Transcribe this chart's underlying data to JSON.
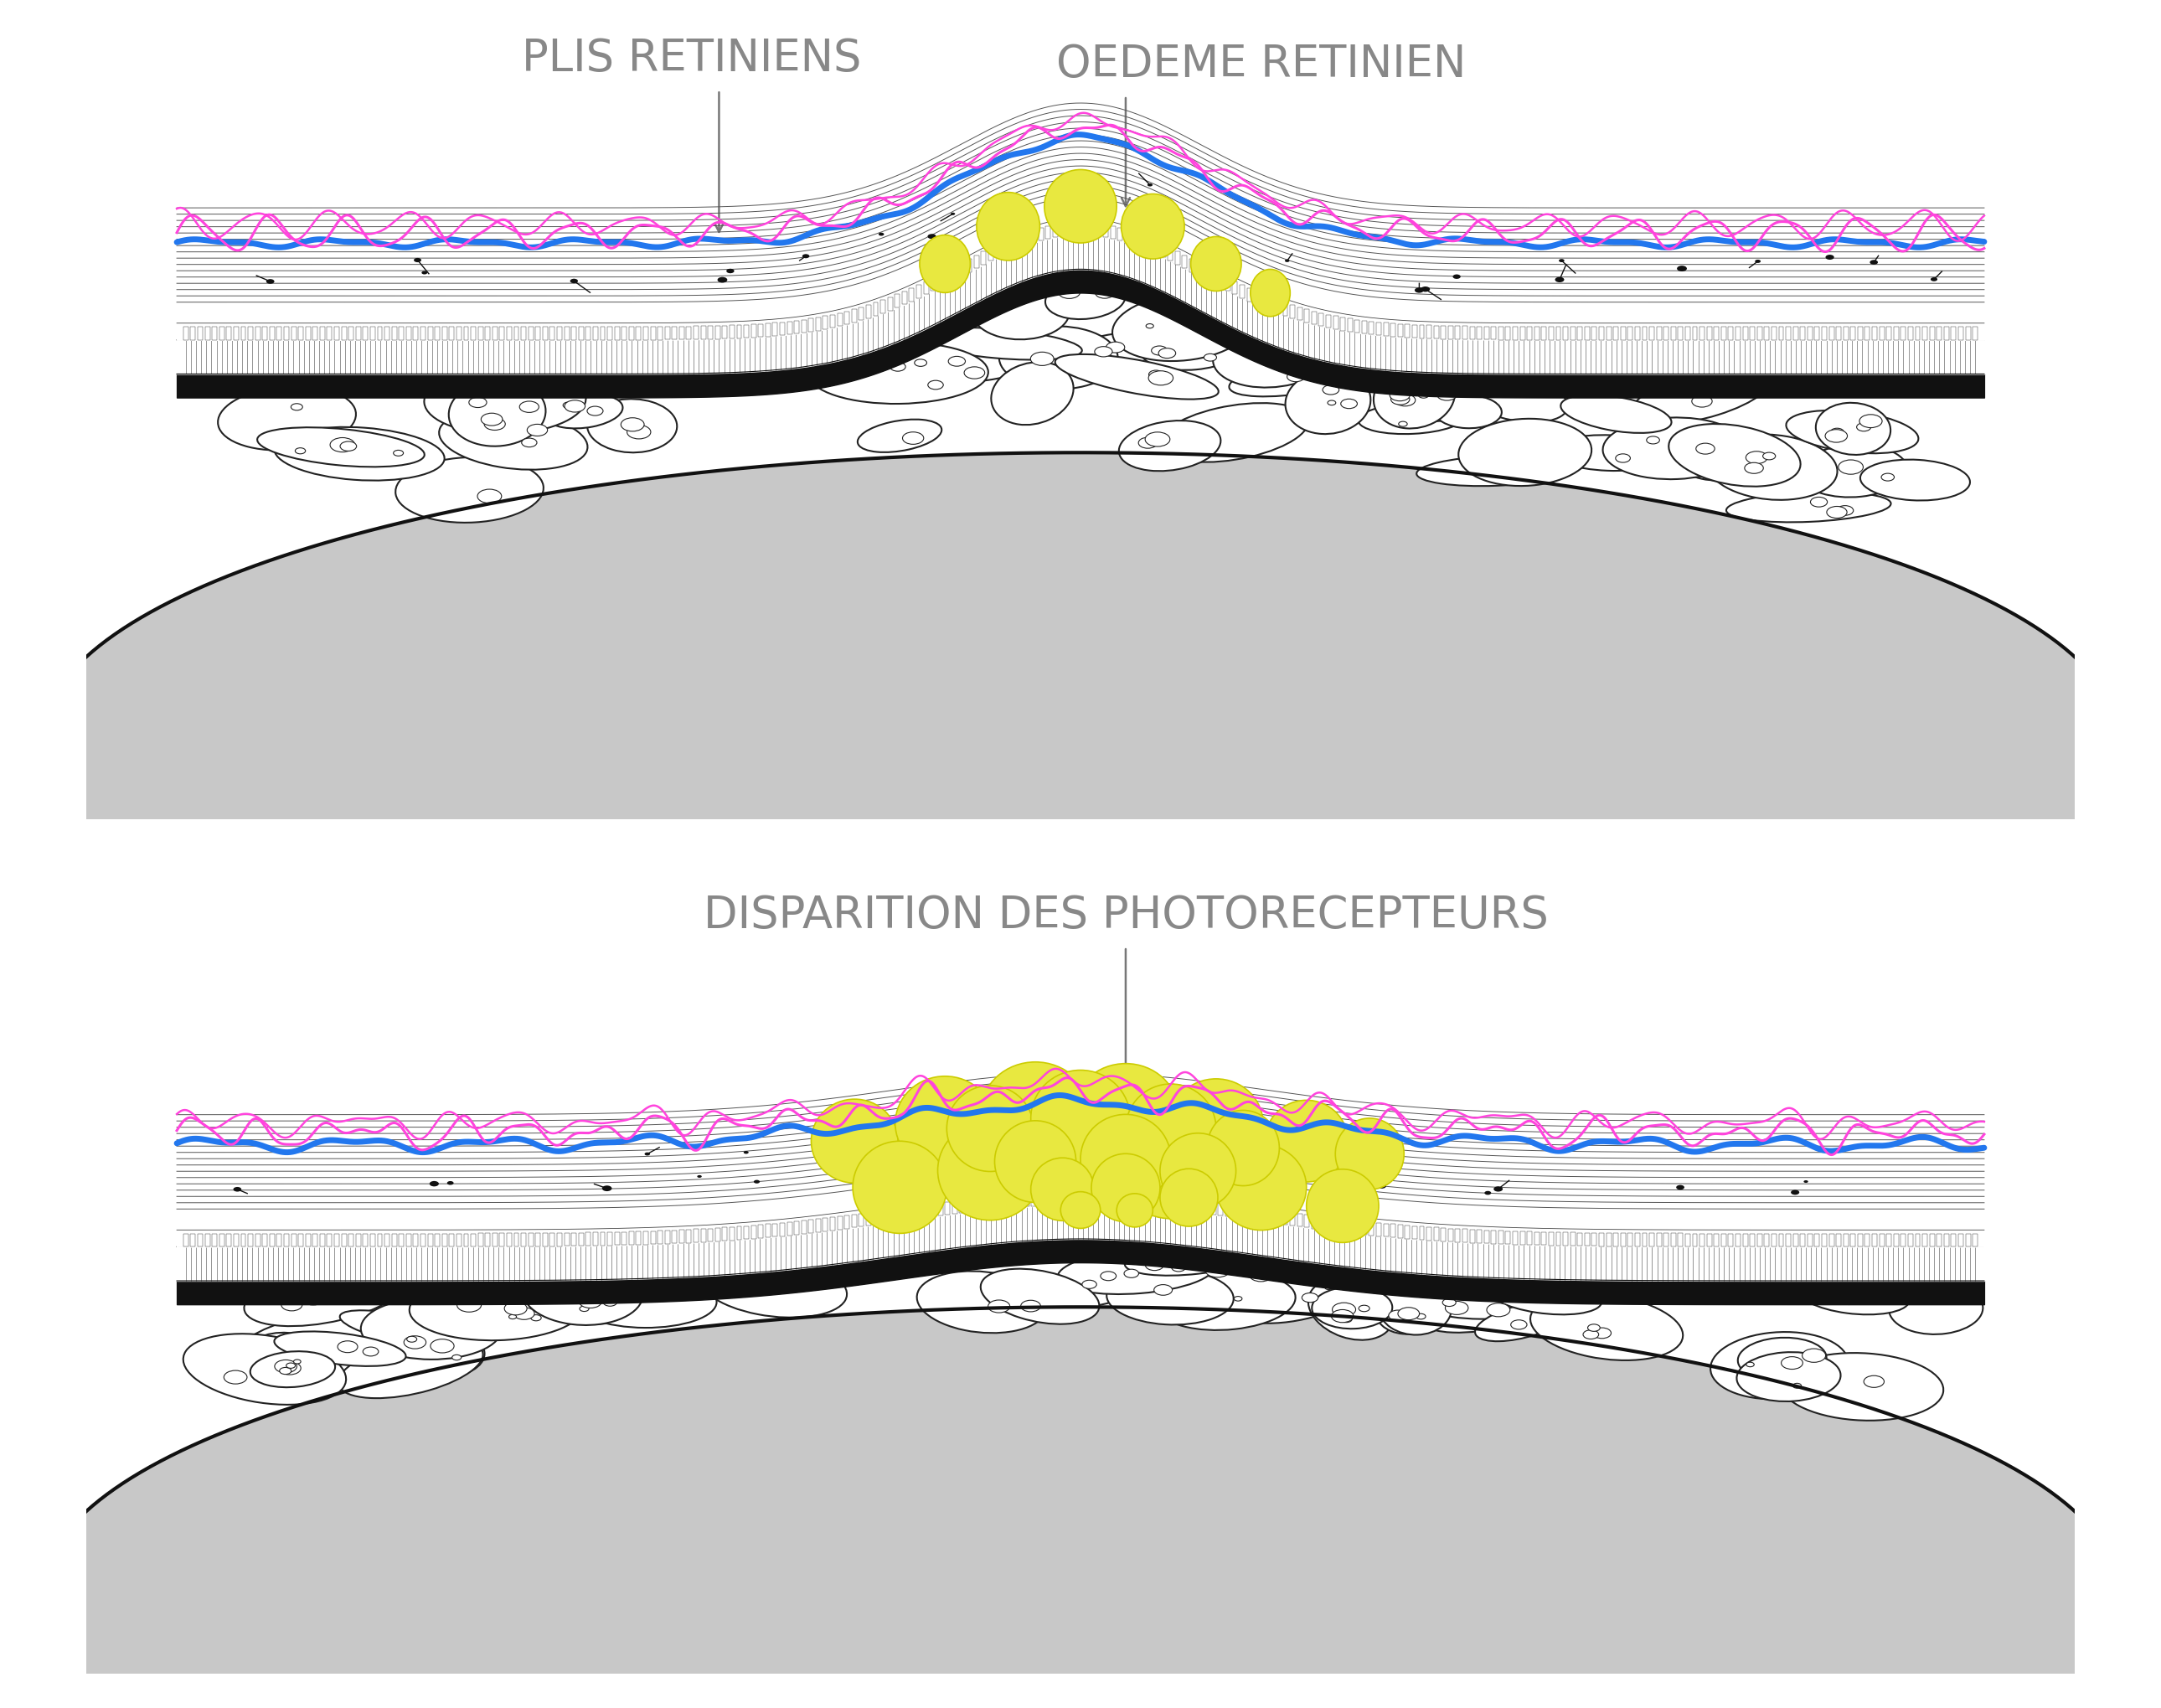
{
  "bg_color": "#ffffff",
  "text_color": "#888888",
  "label1": "PLIS RETINIENS",
  "label2": "OEDEME RETINIEN",
  "label3": "DISPARITION DES PHOTORECEPTEURS",
  "font_size_labels": 38,
  "pink_color": "#ff44dd",
  "blue_color": "#2277ee",
  "yellow_fill": "#e8e840",
  "yellow_edge": "#cccc00",
  "dark_line": "#111111",
  "gray_light": "#c8c8c8",
  "arrow_color": "#777777",
  "cell_line": "#222222"
}
